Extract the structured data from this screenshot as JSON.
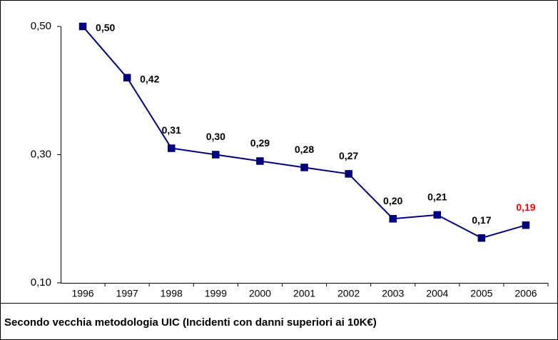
{
  "chart_data": {
    "type": "line",
    "caption": "Secondo vecchia metodologia UIC (Incidenti con danni superiori ai 10K€)",
    "categories": [
      "1996",
      "1997",
      "1998",
      "1999",
      "2000",
      "2001",
      "2002",
      "2003",
      "2004",
      "2005",
      "2006"
    ],
    "series": [
      {
        "color": "#000080",
        "values": [
          0.5,
          0.42,
          0.31,
          0.3,
          0.29,
          0.28,
          0.27,
          0.2,
          0.206,
          0.17,
          0.19
        ],
        "value_labels": [
          "0,50",
          "0,42",
          "0,31",
          "0,30",
          "0,29",
          "0,28",
          "0,27",
          "0,20",
          "0,21",
          "0,17",
          "0,19"
        ],
        "value_label_colors": [
          "#000000",
          "#000000",
          "#000000",
          "#000000",
          "#000000",
          "#000000",
          "#000000",
          "#000000",
          "#000000",
          "#000000",
          "#ff0000"
        ]
      }
    ],
    "ylim": [
      0.1,
      0.5
    ],
    "yticks": [
      {
        "value": 0.1,
        "label": "0,10"
      },
      {
        "value": 0.3,
        "label": "0,30"
      },
      {
        "value": 0.5,
        "label": "0,50"
      }
    ],
    "grid": false
  }
}
